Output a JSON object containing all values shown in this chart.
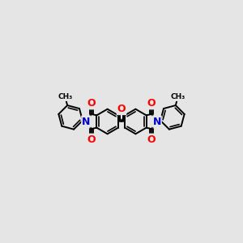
{
  "background_color": "#e5e5e5",
  "bond_color": "#000000",
  "bond_width": 1.4,
  "atom_colors": {
    "O": "#ff0000",
    "N": "#0000cc",
    "C": "#000000"
  },
  "font_size_atom": 9.0,
  "xlim": [
    0.0,
    10.0
  ],
  "ylim": [
    1.5,
    8.5
  ]
}
